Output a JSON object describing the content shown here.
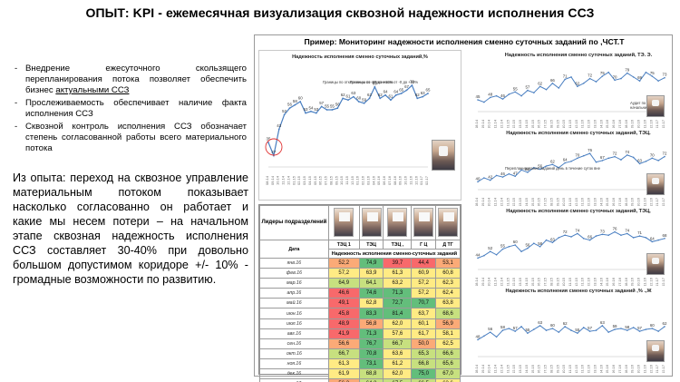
{
  "slide": {
    "title": "ОПЫТ: KPI - ежемесячная визуализация сквозной надежности исполнения ССЗ"
  },
  "bullets": [
    {
      "text_before": "Внедрение ежесуточного скользящего перепланирования потока позволяет обеспечить бизнес ",
      "underlined": "актуальными ССЗ",
      "text_after": ""
    },
    {
      "text_before": "Прослеживаемость обеспечивает наличие факта исполнения ССЗ",
      "underlined": "",
      "text_after": ""
    },
    {
      "text_before": "Сквозной контроль исполнения ССЗ обозначает степень согласованной работы всего материального потока",
      "underlined": "",
      "text_after": ""
    }
  ],
  "experience_text": "Из опыта: переход на сквозное управление материальным потоком показывает насколько согласованно он работает и какие мы несем потери – на начальном этапе сквозная надежность исполнения ССЗ составляет 30-40% при довольно большом допустимом коридоре +/- 10% - громадные возможности по развитию.",
  "panel": {
    "title": "Пример: Мониторинг надежности исполнения сменно суточных заданий по ,ЧСТ.Т"
  },
  "main_chart": {
    "title": "Надежность исполнения сменно суточных заданий,%",
    "annotation_1": "Границы по отклонению от -10 до +10%",
    "annotation_2": "Границы по отклонению от -0 до +10%",
    "x_labels": [
      "08.14",
      "09.14",
      "10.14",
      "11.14",
      "12.14",
      "01.15",
      "02.15",
      "03.15",
      "04.15",
      "05.15",
      "06.15",
      "07.15",
      "08.15",
      "09.15",
      "10.15",
      "11.15",
      "12.15",
      "01.16",
      "02.16",
      "03.16",
      "04.16",
      "05.16",
      "06.16",
      "07.16",
      "08.16",
      "09.16",
      "10.16",
      "11.16",
      "12.16",
      "01.17",
      "02.17"
    ],
    "values": [
      35,
      27,
      43,
      52,
      56,
      58,
      60,
      53,
      54,
      53,
      57,
      55,
      55,
      56,
      62,
      61,
      63,
      60,
      59,
      62,
      69,
      62,
      64,
      61,
      64,
      65,
      67,
      70,
      62,
      63,
      65
    ]
  },
  "mini_charts": [
    {
      "title": "Надежность исполнения сменно суточных заданий, ТЭ. Э.",
      "values": [
        45,
        42,
        48,
        50,
        46,
        52,
        55,
        50,
        57,
        54,
        62,
        58,
        66,
        60,
        71,
        74,
        62,
        66,
        72,
        68,
        75,
        80,
        70,
        72,
        79,
        74,
        69,
        80,
        75,
        69,
        73
      ],
      "note": "Аудит по стороне",
      "note2": "начальника цеха"
    },
    {
      "title": "Надежность исполнения сменно суточных заданий, ТЭЦ.",
      "values": [
        40,
        45,
        42,
        48,
        46,
        50,
        47,
        55,
        52,
        58,
        56,
        60,
        62,
        58,
        64,
        66,
        70,
        73,
        76,
        65,
        67,
        70,
        72,
        68,
        74,
        71,
        63,
        66,
        70,
        67,
        72
      ],
      "note": "Перепланирование заданий день в течение суток вне",
      "note2": ""
    },
    {
      "title": "Надежность исполнения сменно суточных заданий, ТЭЦ,",
      "values": [
        44,
        47,
        52,
        48,
        55,
        58,
        60,
        52,
        56,
        62,
        58,
        66,
        63,
        69,
        72,
        70,
        74,
        68,
        66,
        71,
        73,
        72,
        76,
        72,
        74,
        69,
        71,
        69,
        64,
        66,
        68
      ],
      "note": "",
      "note2": ""
    },
    {
      "title": "Надежность исполнения сменно суточных заданий ,% .,Ж",
      "values": [
        48,
        52,
        56,
        51,
        58,
        60,
        57,
        62,
        55,
        59,
        63,
        58,
        60,
        56,
        62,
        58,
        55,
        61,
        57,
        58,
        63,
        56,
        59,
        60,
        58,
        61,
        57,
        59,
        60,
        57,
        62
      ],
      "note": "",
      "note2": ""
    }
  ],
  "kpi_table": {
    "leaders_header": "Лидеры подразделений",
    "date_header": "Дата",
    "group_header": "Надежность исполнения сменно-суточных заданий",
    "teams": [
      "ТЭЦ 1",
      "ТЭЦ",
      "ТЭЦ ,",
      "Г Ц",
      "Д ТГ"
    ],
    "rows": [
      {
        "date": "янв.16",
        "values": [
          "52,2",
          "74,9",
          "39,7",
          "44,4",
          "53,1"
        ]
      },
      {
        "date": "фев.16",
        "values": [
          "57,2",
          "63,9",
          "61,3",
          "60,9",
          "60,8"
        ]
      },
      {
        "date": "мар.16",
        "values": [
          "64,9",
          "64,1",
          "63,2",
          "57,2",
          "62,3"
        ]
      },
      {
        "date": "апр.16",
        "values": [
          "46,6",
          "74,6",
          "71,3",
          "57,2",
          "62,4"
        ]
      },
      {
        "date": "май.16",
        "values": [
          "49,1",
          "62,8",
          "72,7",
          "70,7",
          "63,8"
        ]
      },
      {
        "date": "июн.16",
        "values": [
          "45,8",
          "83,3",
          "81,4",
          "63,7",
          "68,6"
        ]
      },
      {
        "date": "июл.16",
        "values": [
          "48,9",
          "56,8",
          "62,0",
          "60,1",
          "56,9"
        ]
      },
      {
        "date": "авг.16",
        "values": [
          "41,9",
          "71,3",
          "57,6",
          "61,7",
          "58,1"
        ]
      },
      {
        "date": "сен.16",
        "values": [
          "56,6",
          "76,7",
          "66,7",
          "50,0",
          "62,5"
        ]
      },
      {
        "date": "окт.16",
        "values": [
          "66,7",
          "70,8",
          "63,6",
          "65,3",
          "66,6"
        ]
      },
      {
        "date": "ноя.16",
        "values": [
          "61,3",
          "73,1",
          "61,2",
          "66,8",
          "65,6"
        ]
      },
      {
        "date": "дек.16",
        "values": [
          "61,9",
          "68,8",
          "62,0",
          "75,0",
          "67,0"
        ]
      },
      {
        "date": "янв.17",
        "values": [
          "56,2",
          "64,2",
          "67,5",
          "66,5",
          "63,6"
        ]
      }
    ]
  },
  "colors": {
    "line": "#4a7fc1",
    "red": "#f8696b",
    "orange": "#fbaa77",
    "yellow": "#ffeb84",
    "light_green": "#c7e07f",
    "green": "#63be7b",
    "highlight_circle": "#e03030"
  }
}
